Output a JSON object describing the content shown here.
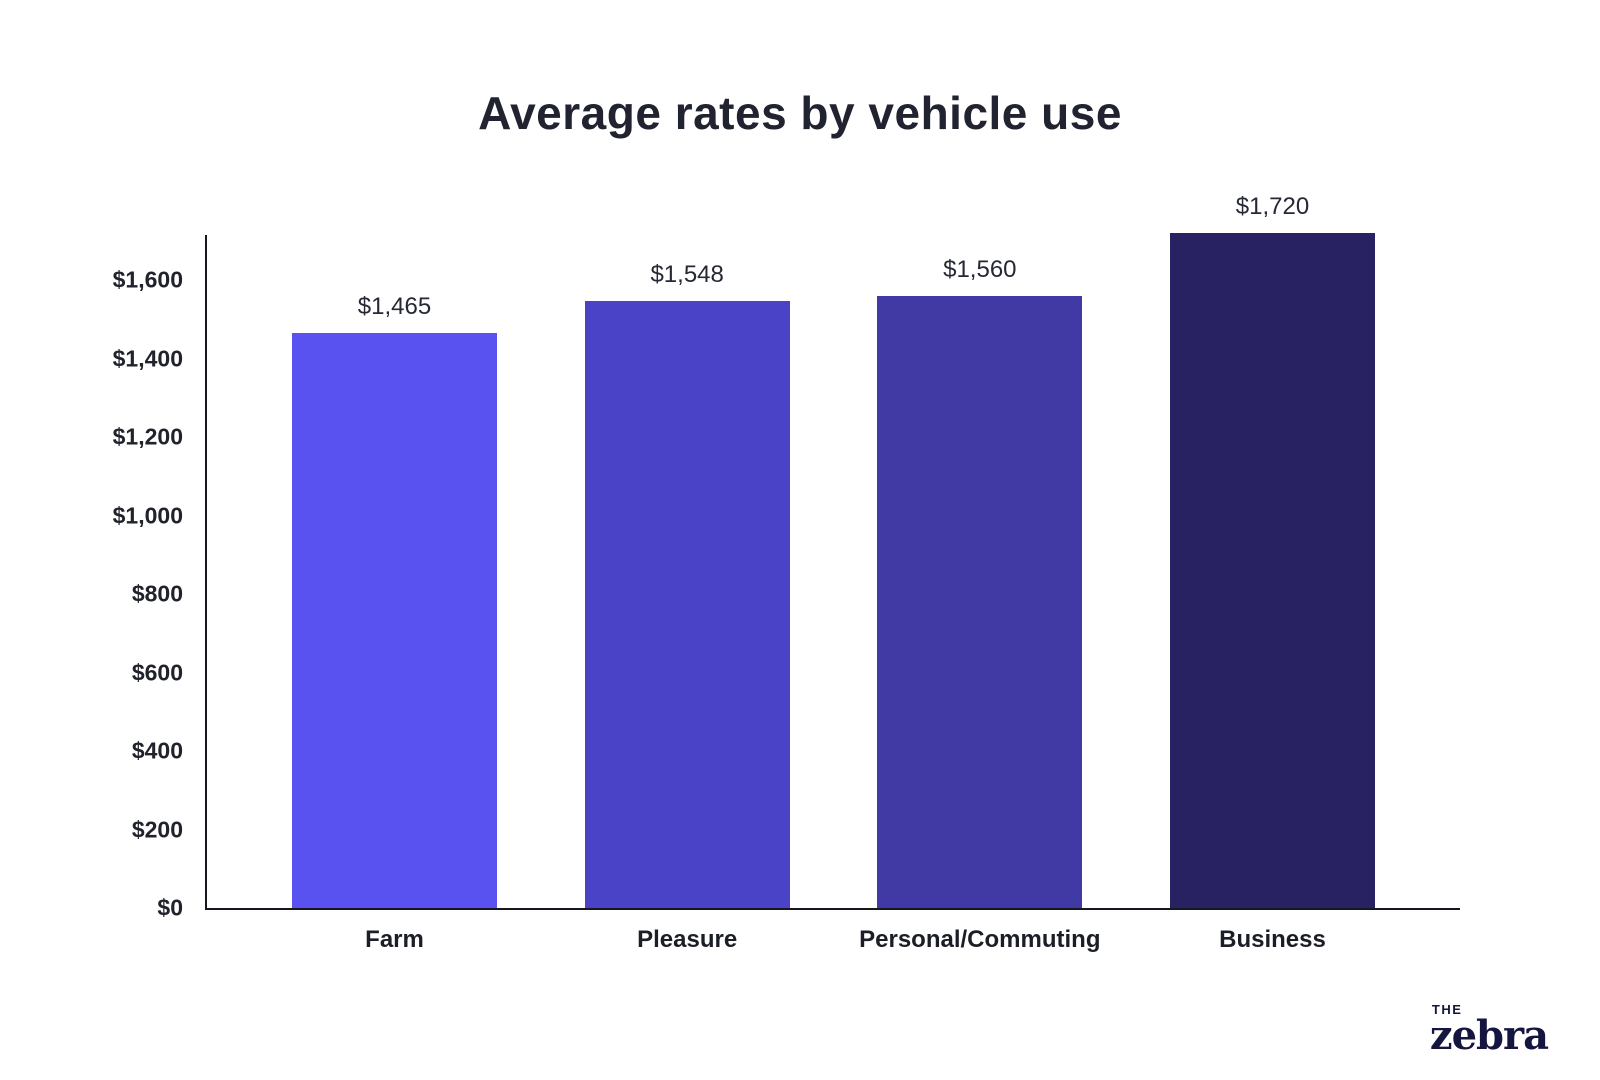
{
  "chart_data": {
    "type": "bar",
    "title": "Average rates by vehicle use",
    "categories": [
      "Farm",
      "Pleasure",
      "Personal/Commuting",
      "Business"
    ],
    "values": [
      1465,
      1548,
      1560,
      1720
    ],
    "value_labels": [
      "$1,465",
      "$1,548",
      "$1,560",
      "$1,720"
    ],
    "bar_colors": [
      "#5952f0",
      "#4a43c7",
      "#413aa5",
      "#282263"
    ],
    "yticks": [
      0,
      200,
      400,
      600,
      800,
      1000,
      1200,
      1400,
      1600
    ],
    "ytick_labels": [
      "$0",
      "$200",
      "$400",
      "$600",
      "$800",
      "$1,000",
      "$1,200",
      "$1,400",
      "$1,600"
    ],
    "ylim": [
      0,
      1720
    ],
    "grid": false,
    "legend": "none",
    "xlabel": "",
    "ylabel": ""
  },
  "logo": {
    "top_text": "THE",
    "brand_text": "zebra"
  }
}
